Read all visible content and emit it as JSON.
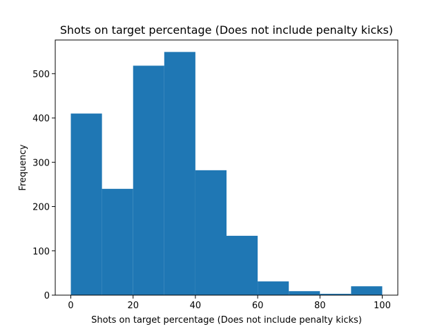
{
  "chart_data": {
    "type": "bar",
    "title": "Shots on target percentage (Does not include penalty kicks)",
    "xlabel": "Shots on target percentage (Does not include penalty kicks)",
    "ylabel": "Frequency",
    "bins": [
      {
        "start": 0,
        "end": 10,
        "value": 410
      },
      {
        "start": 10,
        "end": 20,
        "value": 240
      },
      {
        "start": 20,
        "end": 30,
        "value": 518
      },
      {
        "start": 30,
        "end": 40,
        "value": 549
      },
      {
        "start": 40,
        "end": 50,
        "value": 282
      },
      {
        "start": 50,
        "end": 60,
        "value": 134
      },
      {
        "start": 60,
        "end": 70,
        "value": 31
      },
      {
        "start": 70,
        "end": 80,
        "value": 9
      },
      {
        "start": 80,
        "end": 90,
        "value": 3
      },
      {
        "start": 90,
        "end": 100,
        "value": 20
      }
    ],
    "xlim": [
      -5,
      105
    ],
    "ylim": [
      0,
      576
    ],
    "xticks": [
      0,
      20,
      40,
      60,
      80,
      100
    ],
    "yticks": [
      0,
      100,
      200,
      300,
      400,
      500
    ],
    "bar_color": "#1f77b4",
    "grid": false,
    "legend": "none"
  }
}
